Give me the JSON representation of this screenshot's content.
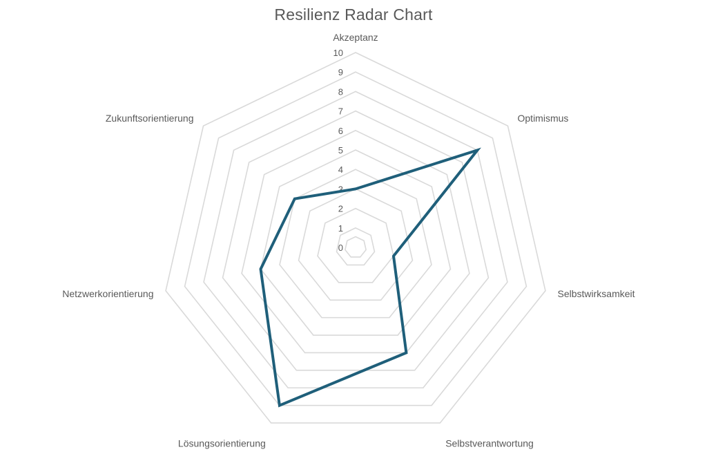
{
  "chart_data": {
    "type": "radar",
    "title": "Resilienz Radar Chart",
    "categories": [
      "Akzeptanz",
      "Optimismus",
      "Selbstwirksamkeit",
      "Selbstverantwortung",
      "Lösungsorientierung",
      "Netzwerkorientierung",
      "Zukunftsorientierung"
    ],
    "series": [
      {
        "values": [
          3,
          8,
          2,
          6,
          9,
          5,
          4
        ]
      }
    ],
    "rlim": [
      0,
      10
    ],
    "ticks": [
      "0",
      "1",
      "2",
      "3",
      "4",
      "5",
      "6",
      "7",
      "8",
      "9",
      "10"
    ],
    "grid": true,
    "legend": "none",
    "colors": {
      "series": "#1f5f7a",
      "grid": "#d9d9d9",
      "text": "#595959"
    }
  }
}
